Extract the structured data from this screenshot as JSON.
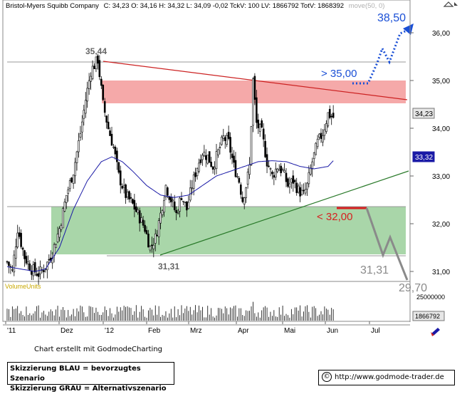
{
  "header": {
    "instrument": "Bristol-Myers Squibb Company",
    "quote": "C: 34,23  O: 34,16  H: 34,32  L: 34,09  -0,02  TckV: 100  LV: 1866792  TotV: 1868392",
    "indicator": "move(50, 0)"
  },
  "volume_label": "VolumeUnits",
  "footer": {
    "credit": "Chart erstellt mit GodmodeCharting",
    "legend_blue": "Skizzierung BLAU = bevorzugtes Szenario",
    "legend_grey": "Skizzierung GRAU = Alternativszenario",
    "copyright_symbol": "©",
    "url": "http://www.godmode-trader.de"
  },
  "colors": {
    "resistance_zone": "#f5a9a9",
    "support_zone": "#a9d6a9",
    "moving_average": "#1a1aa6",
    "downtrend_line": "#cc2222",
    "uptrend_line": "#2a7a2a",
    "bullish_scenario": "#1a4fd6",
    "bearish_target": "#d62020",
    "alternative_scenario": "#8a8a8a",
    "candles": "#000000"
  },
  "chart_data": {
    "type": "candlestick",
    "x_tick_labels": [
      "'11",
      "Dez",
      "'12",
      "Feb",
      "Mrz",
      "Apr",
      "Mai",
      "Jun",
      "Jul"
    ],
    "y_tick_labels": [
      "31,00",
      "32,00",
      "33,00",
      "34,00",
      "35,00",
      "36,00"
    ],
    "ylim": [
      30.8,
      36.55
    ],
    "price_path": [
      [
        0,
        31.2
      ],
      [
        3,
        31.0
      ],
      [
        6,
        31.9
      ],
      [
        10,
        31.3
      ],
      [
        14,
        31.05
      ],
      [
        18,
        30.95
      ],
      [
        22,
        31.1
      ],
      [
        26,
        31.4
      ],
      [
        30,
        31.9
      ],
      [
        34,
        32.6
      ],
      [
        38,
        33.1
      ],
      [
        42,
        33.9
      ],
      [
        45,
        34.6
      ],
      [
        48,
        35.2
      ],
      [
        52,
        35.44
      ],
      [
        55,
        34.5
      ],
      [
        58,
        34.0
      ],
      [
        61,
        33.6
      ],
      [
        64,
        33.0
      ],
      [
        68,
        32.6
      ],
      [
        72,
        32.4
      ],
      [
        75,
        32.2
      ],
      [
        79,
        31.9
      ],
      [
        82,
        31.5
      ],
      [
        85,
        31.7
      ],
      [
        88,
        32.2
      ],
      [
        91,
        32.8
      ],
      [
        94,
        32.5
      ],
      [
        97,
        32.2
      ],
      [
        100,
        32.6
      ],
      [
        103,
        32.3
      ],
      [
        106,
        32.8
      ],
      [
        109,
        33.2
      ],
      [
        112,
        33.5
      ],
      [
        115,
        33.4
      ],
      [
        118,
        33.2
      ],
      [
        121,
        33.5
      ],
      [
        124,
        33.8
      ],
      [
        127,
        33.7
      ],
      [
        130,
        33.2
      ],
      [
        133,
        32.9
      ],
      [
        135,
        32.5
      ],
      [
        137,
        32.8
      ],
      [
        139,
        33.2
      ],
      [
        141,
        35.0
      ],
      [
        143,
        34.1
      ],
      [
        146,
        33.9
      ],
      [
        149,
        33.3
      ],
      [
        152,
        33.0
      ],
      [
        155,
        33.2
      ],
      [
        158,
        33.1
      ],
      [
        161,
        32.8
      ],
      [
        164,
        32.9
      ],
      [
        167,
        32.7
      ],
      [
        170,
        32.6
      ],
      [
        172,
        32.8
      ],
      [
        175,
        33.3
      ],
      [
        178,
        33.7
      ],
      [
        181,
        33.9
      ],
      [
        184,
        34.3
      ],
      [
        187,
        34.23
      ]
    ],
    "ma_path": [
      [
        0,
        31.1
      ],
      [
        8,
        31.05
      ],
      [
        16,
        31.0
      ],
      [
        22,
        31.05
      ],
      [
        30,
        31.5
      ],
      [
        38,
        32.3
      ],
      [
        46,
        32.9
      ],
      [
        54,
        33.3
      ],
      [
        60,
        33.4
      ],
      [
        66,
        33.3
      ],
      [
        72,
        33.1
      ],
      [
        80,
        32.8
      ],
      [
        88,
        32.6
      ],
      [
        96,
        32.55
      ],
      [
        104,
        32.6
      ],
      [
        112,
        32.8
      ],
      [
        120,
        33.0
      ],
      [
        128,
        33.1
      ],
      [
        136,
        33.2
      ],
      [
        144,
        33.3
      ],
      [
        152,
        33.32
      ],
      [
        160,
        33.3
      ],
      [
        168,
        33.2
      ],
      [
        176,
        33.15
      ],
      [
        184,
        33.2
      ],
      [
        187,
        33.32
      ]
    ],
    "last_close": "34,23",
    "ma_value": "33,32",
    "high_label": "35,44",
    "low_label": "31,31",
    "resistance_zone": [
      34.5,
      35.0
    ],
    "support_zone": [
      31.3,
      32.3
    ],
    "bullish_target_label": "38,50",
    "bullish_trigger_label": "> 35,00",
    "bearish_trigger_label": "< 32,00",
    "alt_target_1_label": "31,31",
    "alt_target_2_label": "29,70",
    "volume_tick_labels": [
      "25000000",
      "1866792"
    ]
  }
}
